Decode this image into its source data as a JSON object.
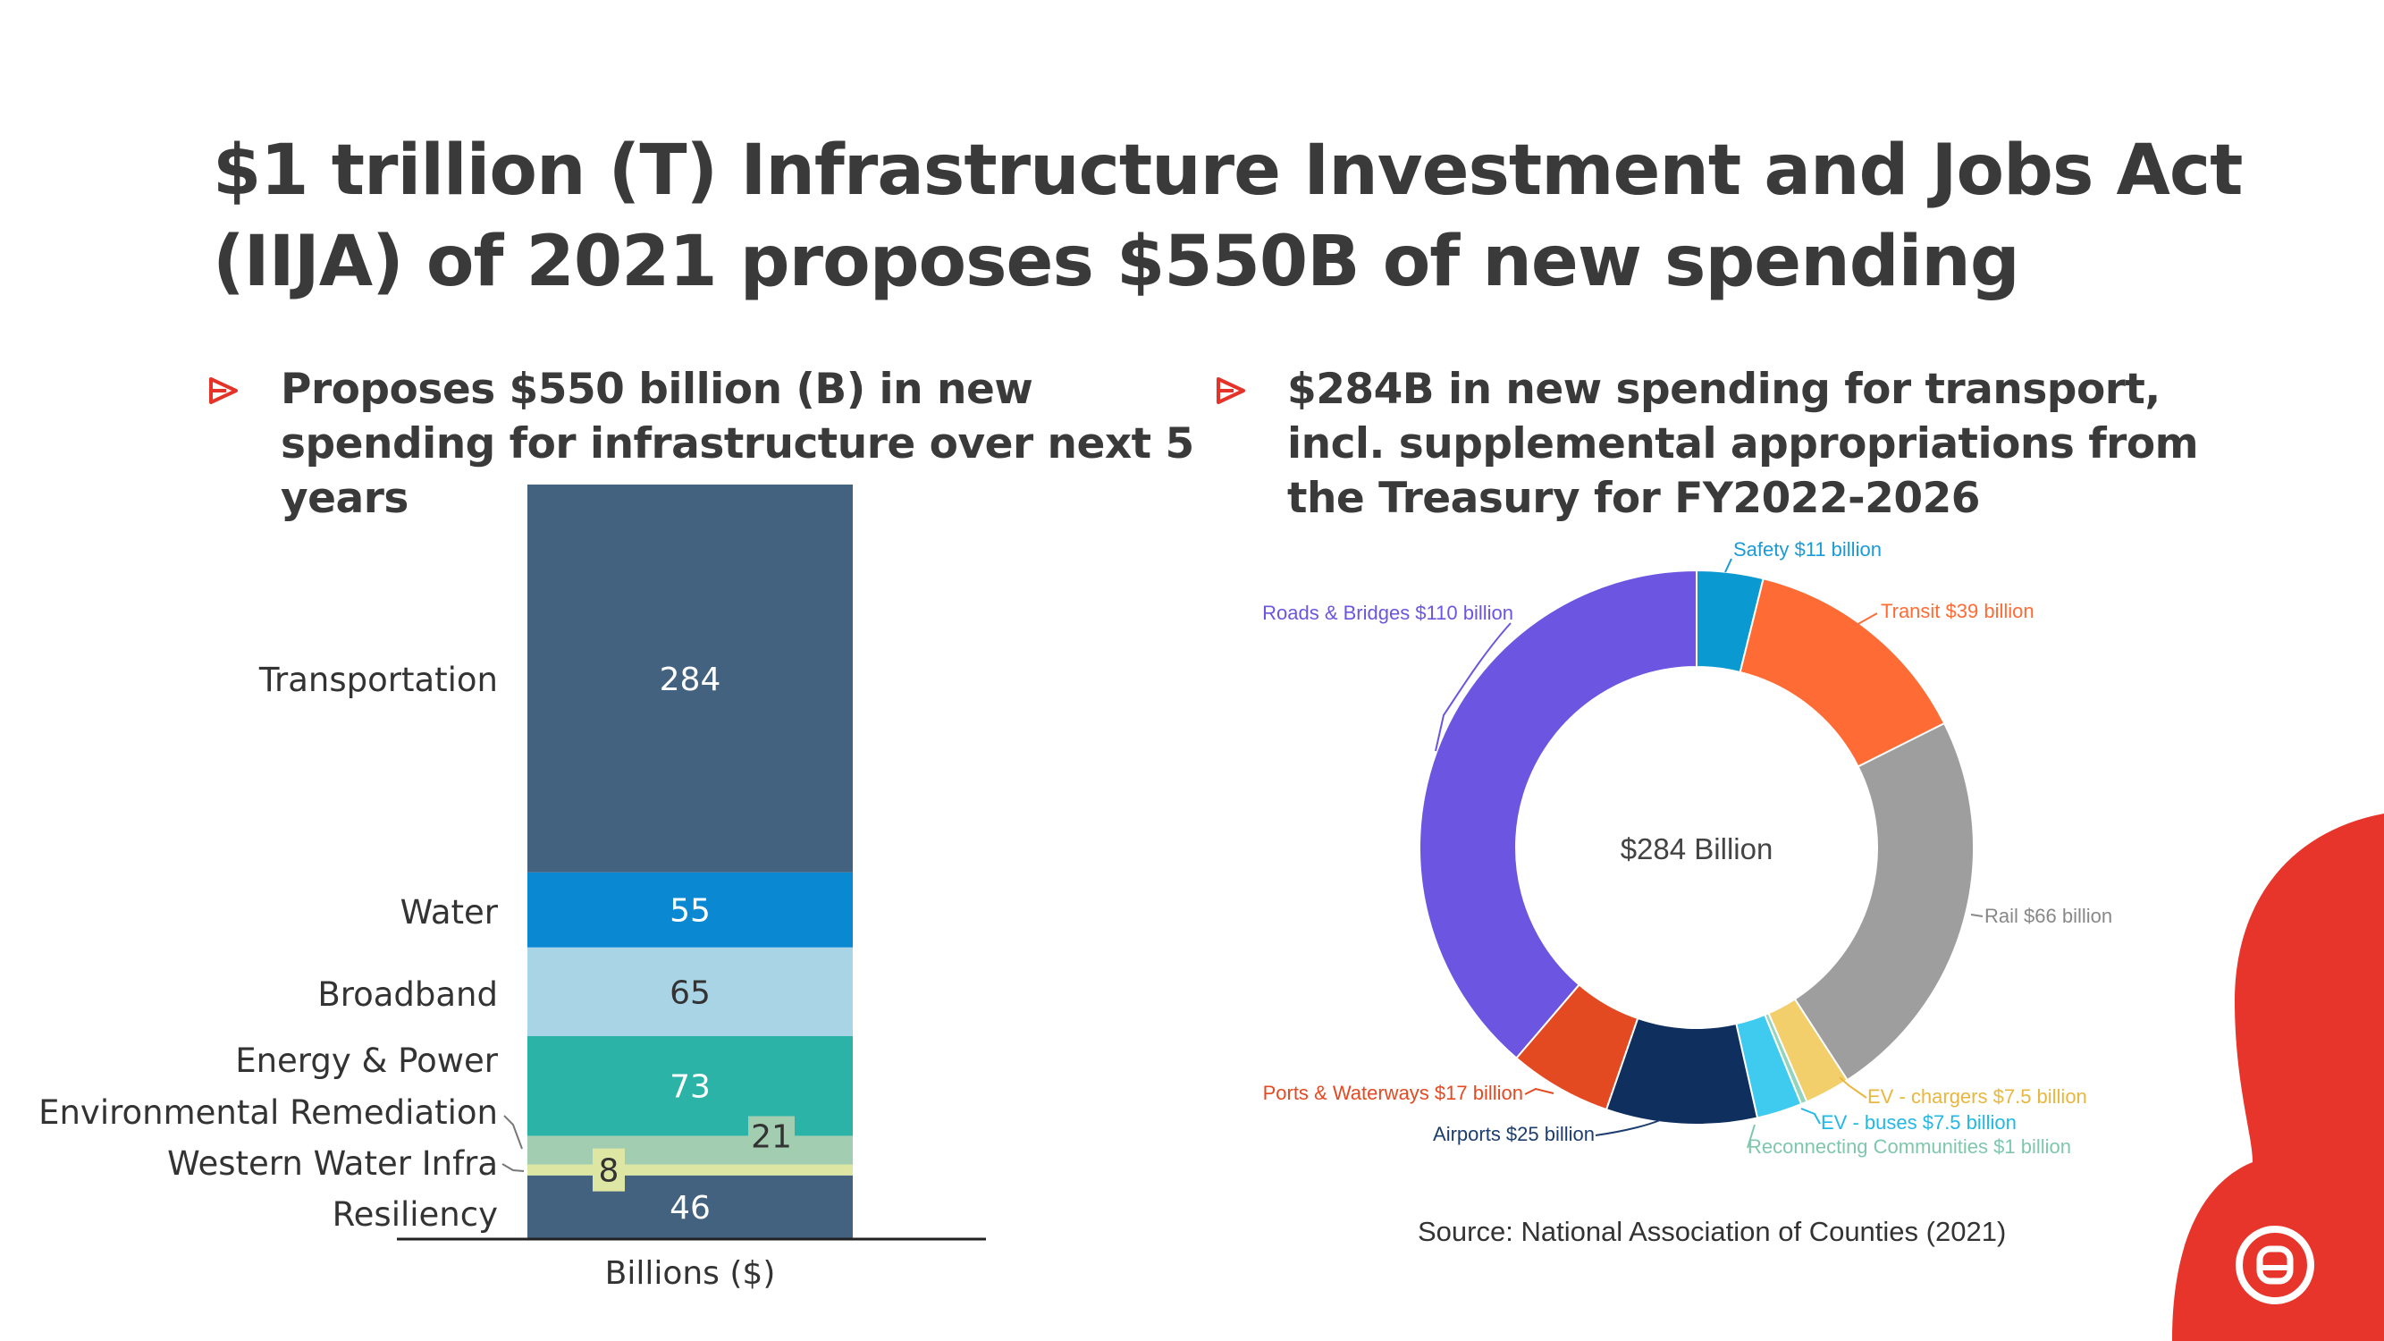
{
  "page": {
    "title_lines": [
      "$1 trillion (T) Infrastructure Investment and Jobs Act",
      "(IIJA) of 2021 proposes $550B of new spending"
    ],
    "left_bullet_lines": [
      "Proposes $550 billion (B) in new",
      "spending for infrastructure over next 5",
      "years"
    ],
    "right_bullet_lines": [
      "$284B in new spending for transport,",
      "incl. supplemental appropriations from",
      "the Treasury for FY2022-2026"
    ],
    "source": "Source: National Association of Counties (2021)",
    "colors": {
      "accent": "#e5332a",
      "brand_red": "#e8352b",
      "title_text": "#3a3a3a"
    }
  },
  "chart_data": [
    {
      "type": "bar",
      "subtype": "stacked",
      "xlabel": "Billions ($)",
      "categories": [
        "Transportation",
        "Water",
        "Broadband",
        "Energy & Power",
        "Environmental Remediation",
        "Western Water Infra",
        "Resiliency"
      ],
      "values": [
        284,
        55,
        65,
        73,
        21,
        8,
        46
      ],
      "labels": [
        "284",
        "55",
        "65",
        "73",
        "21",
        "8",
        "46"
      ],
      "colors": [
        "#43627f",
        "#0a88d1",
        "#a9d4e6",
        "#2ab3a6",
        "#a2cdb0",
        "#dde6a2",
        "#43627f"
      ],
      "label_colors": [
        "#ffffff",
        "#ffffff",
        "#333333",
        "#ffffff",
        "#333333",
        "#333333",
        "#ffffff"
      ]
    },
    {
      "type": "pie",
      "subtype": "donut",
      "center_label": "$284 Billion",
      "slices": [
        {
          "name": "Safety",
          "label": "Safety $11 billion",
          "value": 11,
          "color": "#0a9ad1",
          "label_color": "#1a9ad6"
        },
        {
          "name": "Transit",
          "label": "Transit $39 billion",
          "value": 39,
          "color": "#ff6b35",
          "label_color": "#ff6b35"
        },
        {
          "name": "Rail",
          "label": "Rail $66 billion",
          "value": 66,
          "color": "#9e9e9e",
          "label_color": "#888888"
        },
        {
          "name": "EV - chargers",
          "label": "EV - chargers $7.5 billion",
          "value": 7.5,
          "color": "#f2cf6b",
          "label_color": "#e9b73f"
        },
        {
          "name": "Reconnecting Communities",
          "label": "Reconnecting Communities $1 billion",
          "value": 1,
          "color": "#93d4bf",
          "label_color": "#7fc7ac"
        },
        {
          "name": "EV - buses",
          "label": "EV - buses $7.5 billion",
          "value": 7.5,
          "color": "#3fcbf0",
          "label_color": "#22b8e6"
        },
        {
          "name": "Airports",
          "label": "Airports $25 billion",
          "value": 25,
          "color": "#0f2f5e",
          "label_color": "#1c3d6e"
        },
        {
          "name": "Ports & Waterways",
          "label": "Ports & Waterways $17 billion",
          "value": 17,
          "color": "#e44a22",
          "label_color": "#e44a22"
        },
        {
          "name": "Roads & Bridges",
          "label": "Roads & Bridges $110 billion",
          "value": 110,
          "color": "#6c55e0",
          "label_color": "#6c55e0"
        }
      ]
    }
  ]
}
